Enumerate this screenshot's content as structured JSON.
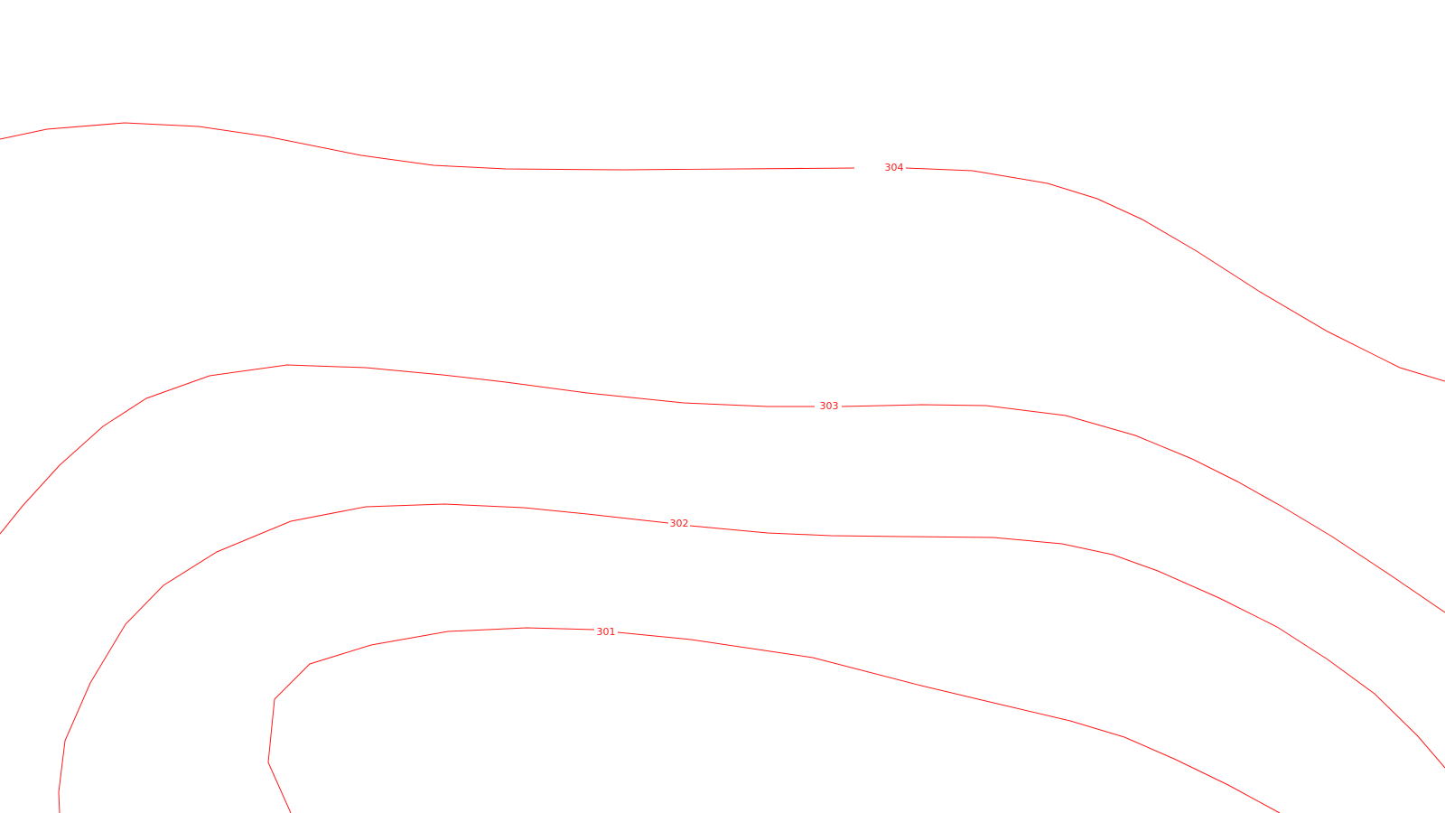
{
  "map": {
    "line_color": "#ff1a1a",
    "contours": [
      {
        "id": "304",
        "label": "304"
      },
      {
        "id": "303",
        "label": "303"
      },
      {
        "id": "302",
        "label": "302"
      },
      {
        "id": "301",
        "label": "301"
      }
    ]
  }
}
